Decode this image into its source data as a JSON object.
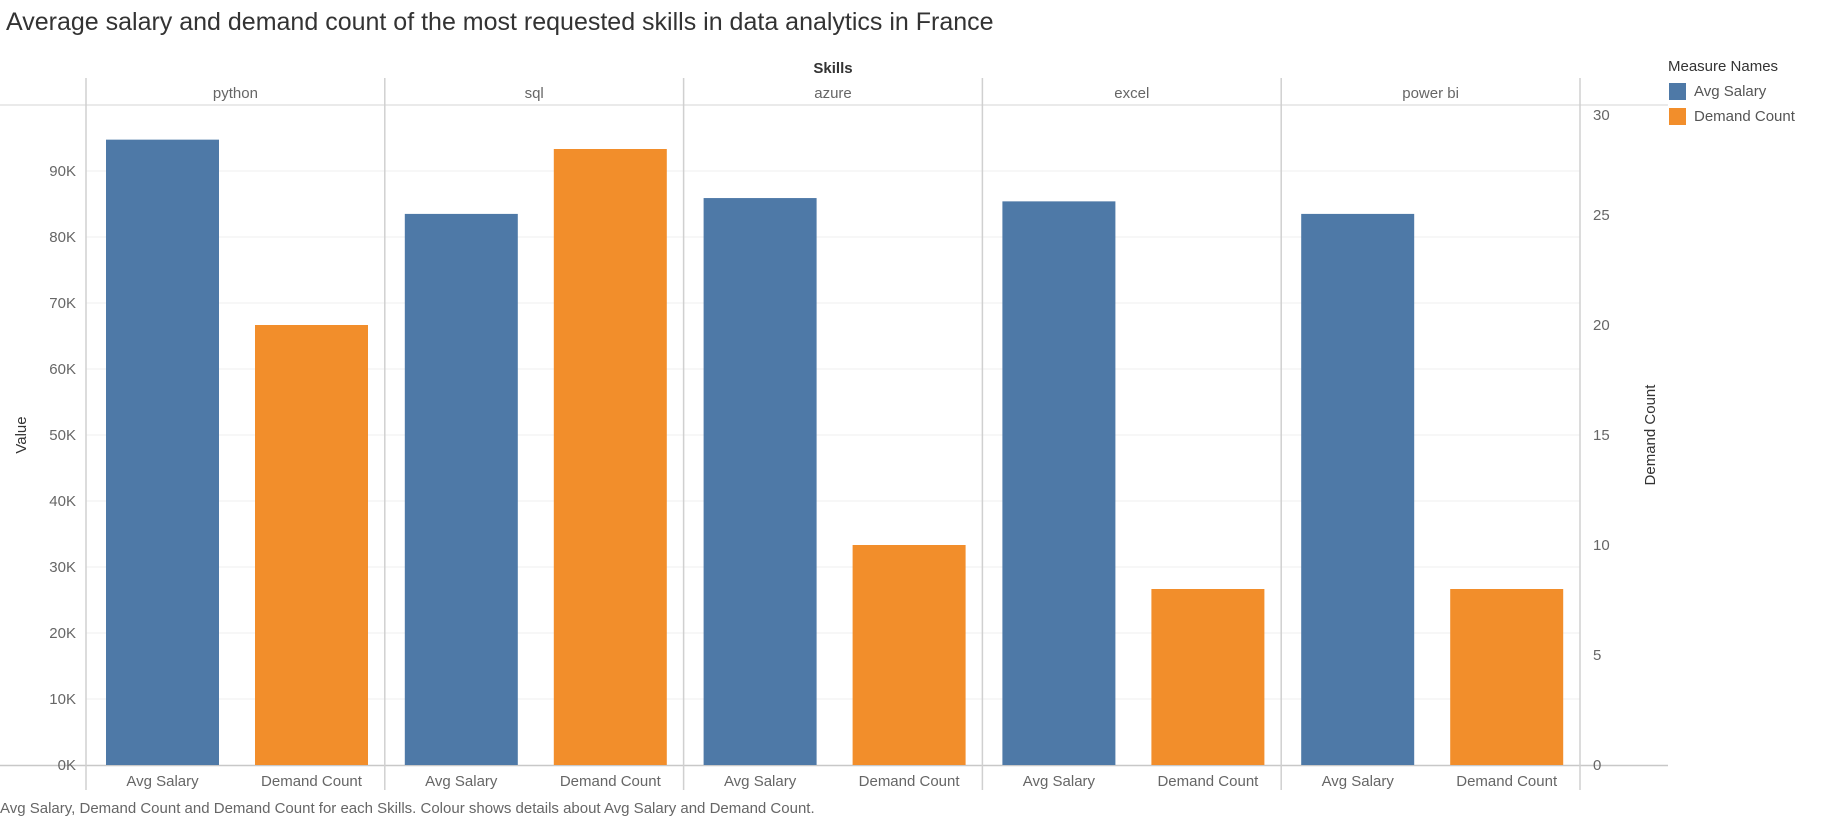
{
  "title": "Average salary and demand count of the most requested skills in data analytics in France",
  "caption": "Avg Salary, Demand Count and Demand Count for each Skills.  Colour shows details about Avg Salary and Demand Count.",
  "legend": {
    "title": "Measure Names",
    "items": [
      {
        "label": "Avg Salary",
        "color": "#4e79a7"
      },
      {
        "label": "Demand Count",
        "color": "#f28e2b"
      }
    ]
  },
  "chart_data": {
    "type": "bar",
    "column_header": "Skills",
    "categories": [
      "python",
      "sql",
      "azure",
      "excel",
      "power bi"
    ],
    "bar_labels": [
      "Avg Salary",
      "Demand Count"
    ],
    "series": [
      {
        "name": "Avg Salary",
        "axis": "left",
        "color": "#4e79a7",
        "values": [
          94750,
          83500,
          85900,
          85400,
          83500
        ]
      },
      {
        "name": "Demand Count",
        "axis": "right",
        "color": "#f28e2b",
        "values": [
          20,
          28,
          10,
          8,
          8
        ]
      }
    ],
    "ylabel": "Value",
    "y2label": "Demand Count",
    "ylim": [
      0,
      100000
    ],
    "y2lim": [
      0,
      30
    ],
    "yticks": [
      {
        "value": 0,
        "label": "0K"
      },
      {
        "value": 10000,
        "label": "10K"
      },
      {
        "value": 20000,
        "label": "20K"
      },
      {
        "value": 30000,
        "label": "30K"
      },
      {
        "value": 40000,
        "label": "40K"
      },
      {
        "value": 50000,
        "label": "50K"
      },
      {
        "value": 60000,
        "label": "60K"
      },
      {
        "value": 70000,
        "label": "70K"
      },
      {
        "value": 80000,
        "label": "80K"
      },
      {
        "value": 90000,
        "label": "90K"
      }
    ],
    "y2ticks": [
      {
        "value": 0,
        "label": "0"
      },
      {
        "value": 5,
        "label": "5"
      },
      {
        "value": 10,
        "label": "10"
      },
      {
        "value": 15,
        "label": "15"
      },
      {
        "value": 20,
        "label": "20"
      },
      {
        "value": 25,
        "label": "25"
      },
      {
        "value": 30,
        "label": "30"
      }
    ],
    "grid": true,
    "legend_position": "top-right"
  }
}
